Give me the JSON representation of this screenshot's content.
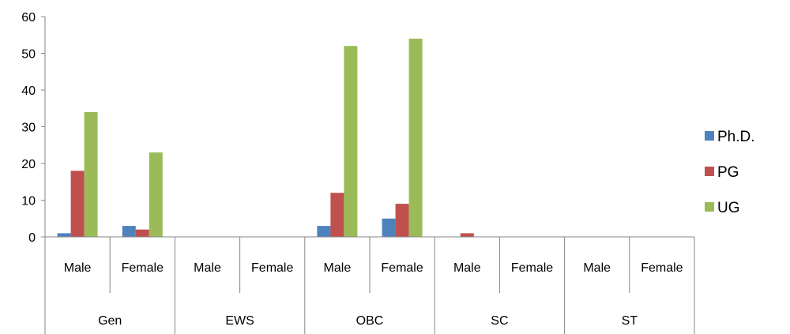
{
  "chart_data": {
    "type": "bar",
    "ylim": [
      0,
      60
    ],
    "yticks": [
      "0",
      "10",
      "20",
      "30",
      "40",
      "50",
      "60"
    ],
    "groups": [
      {
        "label": "Gen",
        "categories": [
          "Male",
          "Female"
        ]
      },
      {
        "label": "EWS",
        "categories": [
          "Male",
          "Female"
        ]
      },
      {
        "label": "OBC",
        "categories": [
          "Male",
          "Female"
        ]
      },
      {
        "label": "SC",
        "categories": [
          "Male",
          "Female"
        ]
      },
      {
        "label": "ST",
        "categories": [
          "Male",
          "Female"
        ]
      }
    ],
    "series": [
      {
        "name": "Ph.D.",
        "color": "#4F81BD",
        "values": [
          1,
          3,
          0,
          0,
          3,
          5,
          0,
          0,
          0,
          0
        ]
      },
      {
        "name": "PG",
        "color": "#C0504D",
        "values": [
          18,
          2,
          0,
          0,
          12,
          9,
          1,
          0,
          0,
          0
        ]
      },
      {
        "name": "UG",
        "color": "#9BBB59",
        "values": [
          34,
          23,
          0,
          0,
          52,
          54,
          0,
          0,
          0,
          0
        ]
      }
    ],
    "legend_position": "right",
    "grid": false
  }
}
